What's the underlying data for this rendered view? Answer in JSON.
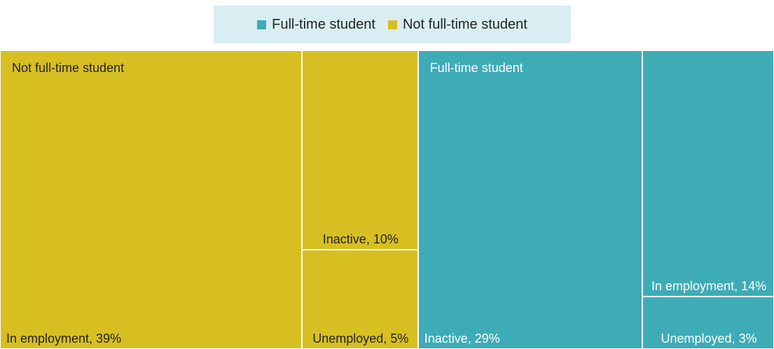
{
  "chart_data": {
    "type": "treemap",
    "groups": [
      {
        "name": "Not full-time student",
        "color": "#d7bf22",
        "label_color": "#222222",
        "children": [
          {
            "label": "In employment, 39%",
            "value": 39
          },
          {
            "label": "Inactive, 10%",
            "value": 10
          },
          {
            "label": "Unemployed, 5%",
            "value": 5
          }
        ]
      },
      {
        "name": "Full-time student",
        "color": "#3eacb7",
        "label_color": "#ffffff",
        "children": [
          {
            "label": "Inactive, 29%",
            "value": 29
          },
          {
            "label": "In employment, 14%",
            "value": 14
          },
          {
            "label": "Unemployed, 3%",
            "value": 3
          }
        ]
      }
    ],
    "legend_order": [
      1,
      0
    ]
  }
}
